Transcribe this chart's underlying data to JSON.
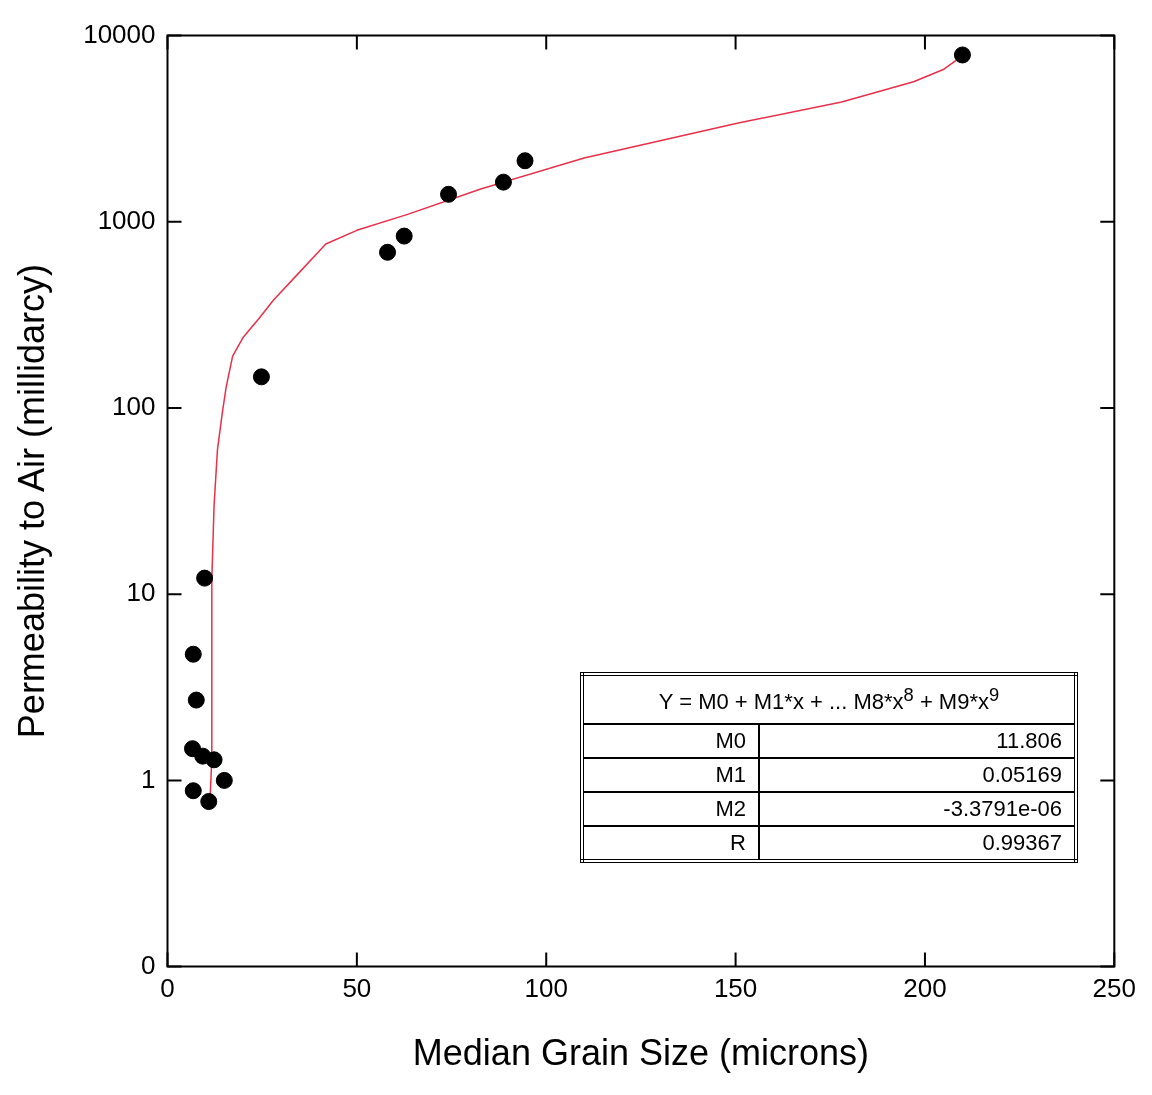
{
  "chart_data": {
    "type": "scatter",
    "xlabel": "Median Grain Size (microns)",
    "ylabel": "Permeability to Air (millidarcy)",
    "log": "y",
    "grid": false,
    "legend": false,
    "xlim": [
      0,
      250
    ],
    "xticks": [
      0,
      50,
      100,
      150,
      200,
      250
    ],
    "ylim": [
      0.1,
      10000
    ],
    "yticks": [
      {
        "value": 0.1,
        "label": "0"
      },
      1,
      10,
      100,
      1000,
      10000
    ],
    "series": [
      {
        "marker": "circle",
        "color": "#000000",
        "x": [
          6.8,
          7.6,
          6.6,
          9.8,
          6.8,
          9.3,
          12.3,
          10.9,
          15.0,
          24.8,
          58.1,
          62.5,
          74.2,
          88.7,
          94.4,
          209.9
        ],
        "values": [
          4.76,
          2.7,
          1.48,
          12.2,
          0.88,
          1.35,
          1.29,
          0.77,
          1.0,
          147,
          686,
          838,
          1405,
          1633,
          2128,
          7870
        ]
      },
      {
        "type": "line",
        "marker": "none",
        "line_style": "solid",
        "color": "#e8304a",
        "x": [
          11.2,
          11.7,
          11.7,
          12.3,
          13.2,
          14.5,
          15.5,
          17.2,
          20,
          24,
          28,
          35,
          41.8,
          50,
          63.6,
          82.7,
          110,
          151,
          178,
          197,
          205,
          210
        ],
        "values": [
          0.77,
          1.3,
          12,
          30,
          60,
          95,
          130,
          190,
          240,
          300,
          380,
          540,
          760,
          900,
          1100,
          1500,
          2200,
          3400,
          4400,
          5650,
          6600,
          7800
        ]
      }
    ],
    "annotations": [
      "Y = M0 + M1*x + ... M8*x$^{8}$ + M9*x$^{9}$",
      "M0",
      "11.806",
      "M1",
      "0.05169",
      "M2",
      "-3.3791e-06",
      "R",
      "0.99367"
    ]
  }
}
